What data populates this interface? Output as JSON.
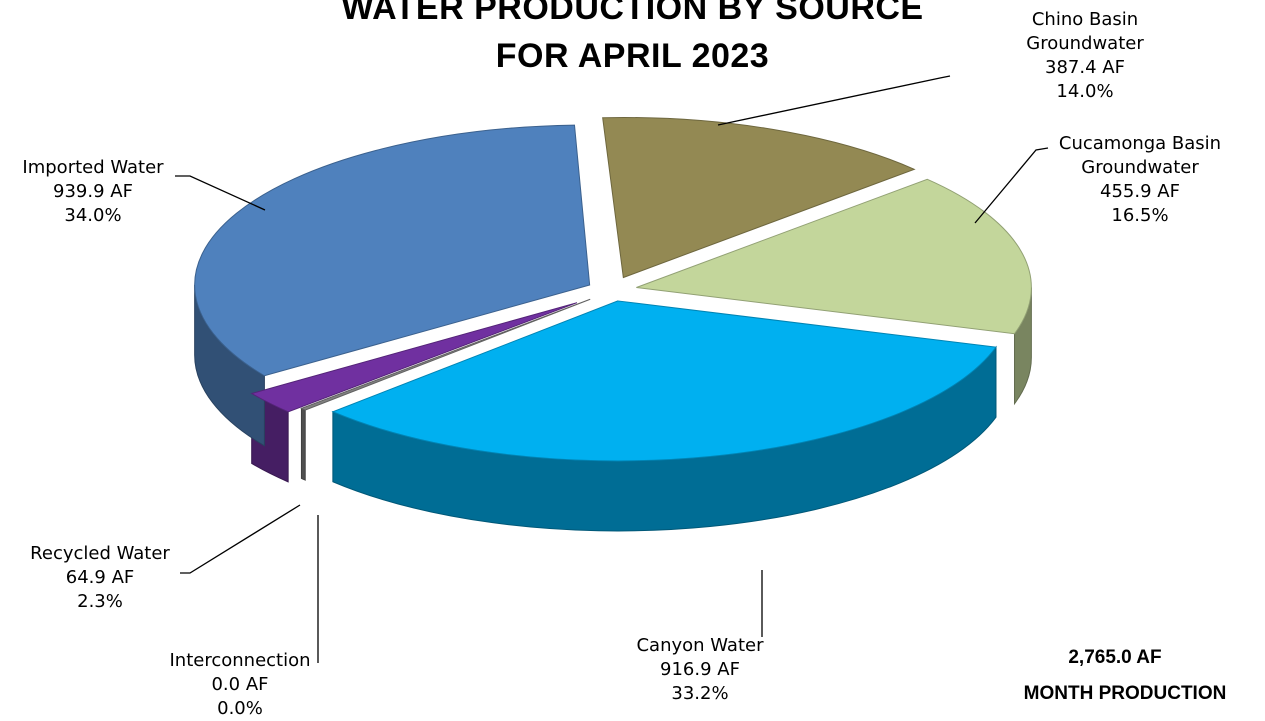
{
  "chart_data": {
    "type": "pie",
    "title_line1": "WATER PRODUCTION BY SOURCE",
    "title_line2": "FOR APRIL 2023",
    "unit": "AF",
    "slices": [
      {
        "label": "Chino Basin Groundwater",
        "label_lines": [
          "Chino Basin",
          "Groundwater"
        ],
        "value_text": "387.4 AF",
        "percent_text": "14.0%",
        "value": 387.4,
        "percent": 14.0,
        "color": "#938953"
      },
      {
        "label": "Cucamonga Basin Groundwater",
        "label_lines": [
          "Cucamonga Basin",
          "Groundwater"
        ],
        "value_text": "455.9 AF",
        "percent_text": "16.5%",
        "value": 455.9,
        "percent": 16.5,
        "color": "#c3d69b"
      },
      {
        "label": "Canyon Water",
        "label_lines": [
          "Canyon Water"
        ],
        "value_text": "916.9 AF",
        "percent_text": "33.2%",
        "value": 916.9,
        "percent": 33.2,
        "color": "#00b0f0"
      },
      {
        "label": "Interconnection",
        "label_lines": [
          "Interconnection"
        ],
        "value_text": "0.0 AF",
        "percent_text": "0.0%",
        "value": 0.0,
        "percent": 0.0,
        "color": "#808080"
      },
      {
        "label": "Recycled Water",
        "label_lines": [
          "Recycled Water"
        ],
        "value_text": "64.9 AF",
        "percent_text": "2.3%",
        "value": 64.9,
        "percent": 2.3,
        "color": "#7030a0"
      },
      {
        "label": "Imported Water",
        "label_lines": [
          "Imported Water"
        ],
        "value_text": "939.9 AF",
        "percent_text": "34.0%",
        "value": 939.9,
        "percent": 34.0,
        "color": "#4f81bd"
      }
    ],
    "total_text": "2,765.0 AF",
    "total_caption": "MONTH PRODUCTION"
  }
}
